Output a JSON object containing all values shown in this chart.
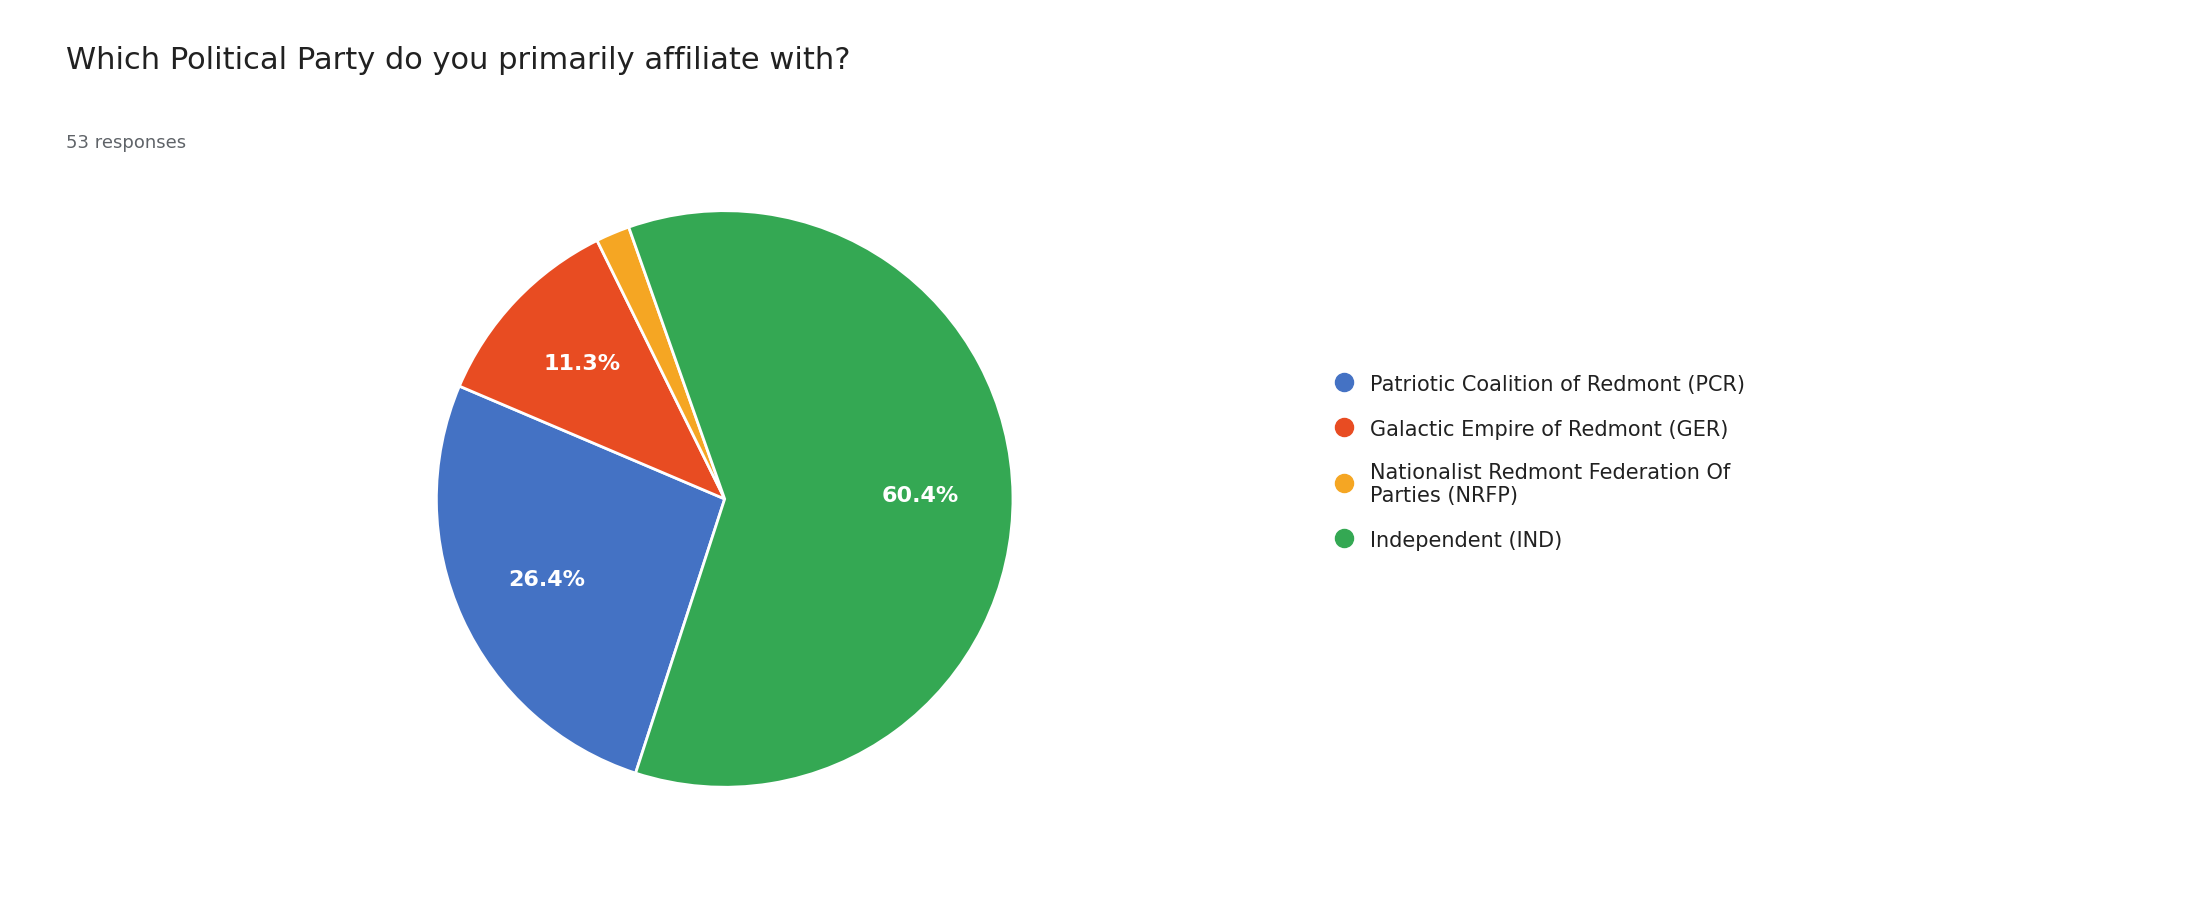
{
  "title": "Which Political Party do you primarily affiliate with?",
  "subtitle": "53 responses",
  "legend_labels": [
    "Patriotic Coalition of Redmont (PCR)",
    "Galactic Empire of Redmont (GER)",
    "Nationalist Redmont Federation Of\nParties (NRFP)",
    "Independent (IND)"
  ],
  "values": [
    26.4,
    11.3,
    1.9,
    60.4
  ],
  "colors": [
    "#4472C4",
    "#E84C22",
    "#F5A623",
    "#34A853"
  ],
  "pct_labels": [
    "26.4%",
    "11.3%",
    "",
    "60.4%"
  ],
  "background_color": "#FFFFFF",
  "title_fontsize": 22,
  "subtitle_fontsize": 13,
  "legend_fontsize": 15,
  "pct_fontsize": 16
}
